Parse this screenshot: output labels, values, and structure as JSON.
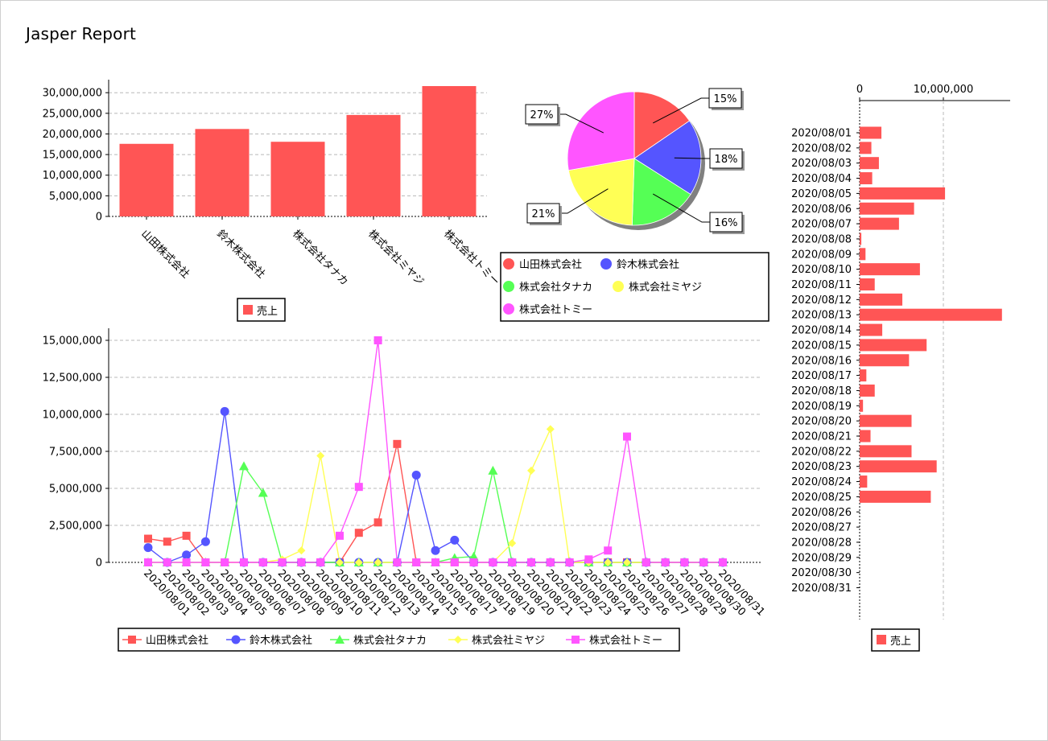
{
  "report_title": "Jasper Report",
  "colors": {
    "red": "#ff5555",
    "blue": "#5555ff",
    "green": "#55ff55",
    "yellow": "#ffff55",
    "magenta": "#ff55ff"
  },
  "chart_data": [
    {
      "id": "bar-chart",
      "type": "bar",
      "categories": [
        "山田株式会社",
        "鈴木株式会社",
        "株式会社タナカ",
        "株式会社ミヤジ",
        "株式会社トミー"
      ],
      "series": [
        {
          "name": "売上",
          "values": [
            17600000,
            21200000,
            18100000,
            24600000,
            31600000
          ]
        }
      ],
      "y_ticks": [
        "0",
        "5,000,000",
        "10,000,000",
        "15,000,000",
        "20,000,000",
        "25,000,000",
        "30,000,000"
      ],
      "ylim": [
        0,
        31600000
      ],
      "legend": "売上"
    },
    {
      "id": "pie-chart",
      "type": "pie",
      "labels": [
        "山田株式会社",
        "鈴木株式会社",
        "株式会社タナカ",
        "株式会社ミヤジ",
        "株式会社トミー"
      ],
      "values": [
        15,
        18,
        16,
        21,
        27
      ],
      "label_text": [
        "15%",
        "18%",
        "16%",
        "21%",
        "27%"
      ]
    },
    {
      "id": "line-chart",
      "type": "line",
      "x": [
        "2020/08/01",
        "2020/08/02",
        "2020/08/03",
        "2020/08/04",
        "2020/08/05",
        "2020/08/06",
        "2020/08/07",
        "2020/08/08",
        "2020/08/09",
        "2020/08/10",
        "2020/08/11",
        "2020/08/12",
        "2020/08/13",
        "2020/08/14",
        "2020/08/15",
        "2020/08/16",
        "2020/08/17",
        "2020/08/18",
        "2020/08/19",
        "2020/08/20",
        "2020/08/21",
        "2020/08/22",
        "2020/08/23",
        "2020/08/24",
        "2020/08/25",
        "2020/08/26",
        "2020/08/27",
        "2020/08/28",
        "2020/08/29",
        "2020/08/30",
        "2020/08/31"
      ],
      "y_ticks": [
        "0",
        "2,500,000",
        "5,000,000",
        "7,500,000",
        "10,000,000",
        "12,500,000",
        "15,000,000"
      ],
      "ylim": [
        0,
        15000000
      ],
      "series": [
        {
          "name": "山田株式会社",
          "marker": "square",
          "values": [
            1600000,
            1400000,
            1800000,
            0,
            0,
            0,
            0,
            0,
            0,
            0,
            0,
            2000000,
            2700000,
            8000000,
            0,
            0,
            0,
            0,
            0,
            0,
            0,
            0,
            0,
            0,
            0,
            0,
            0,
            0,
            0,
            0,
            0
          ]
        },
        {
          "name": "鈴木株式会社",
          "marker": "circle",
          "values": [
            1000000,
            0,
            500000,
            1400000,
            10200000,
            0,
            0,
            0,
            0,
            0,
            0,
            0,
            0,
            0,
            5900000,
            800000,
            1500000,
            0,
            0,
            0,
            0,
            0,
            0,
            0,
            0,
            0,
            0,
            0,
            0,
            0,
            0
          ]
        },
        {
          "name": "株式会社タナカ",
          "marker": "triangle",
          "values": [
            0,
            0,
            0,
            0,
            0,
            6500000,
            4700000,
            0,
            0,
            0,
            0,
            0,
            0,
            0,
            0,
            0,
            300000,
            400000,
            6200000,
            0,
            0,
            0,
            0,
            0,
            0,
            0,
            0,
            0,
            0,
            0,
            0
          ]
        },
        {
          "name": "株式会社ミヤジ",
          "marker": "diamond",
          "values": [
            0,
            0,
            0,
            0,
            0,
            0,
            0,
            200000,
            800000,
            7200000,
            0,
            0,
            0,
            0,
            0,
            0,
            0,
            0,
            0,
            1300000,
            6200000,
            9000000,
            0,
            0,
            0,
            0,
            0,
            0,
            0,
            0,
            0
          ]
        },
        {
          "name": "株式会社トミー",
          "marker": "square",
          "values": [
            0,
            0,
            0,
            0,
            0,
            0,
            0,
            0,
            0,
            0,
            1800000,
            5100000,
            15000000,
            0,
            0,
            0,
            0,
            0,
            0,
            0,
            0,
            0,
            0,
            200000,
            800000,
            8500000,
            0,
            0,
            0,
            0,
            0
          ]
        }
      ]
    },
    {
      "id": "hbar-chart",
      "type": "bar",
      "orientation": "horizontal",
      "categories": [
        "2020/08/01",
        "2020/08/02",
        "2020/08/03",
        "2020/08/04",
        "2020/08/05",
        "2020/08/06",
        "2020/08/07",
        "2020/08/08",
        "2020/08/09",
        "2020/08/10",
        "2020/08/11",
        "2020/08/12",
        "2020/08/13",
        "2020/08/14",
        "2020/08/15",
        "2020/08/16",
        "2020/08/17",
        "2020/08/18",
        "2020/08/19",
        "2020/08/20",
        "2020/08/21",
        "2020/08/22",
        "2020/08/23",
        "2020/08/24",
        "2020/08/25",
        "2020/08/26",
        "2020/08/27",
        "2020/08/28",
        "2020/08/29",
        "2020/08/30",
        "2020/08/31"
      ],
      "series": [
        {
          "name": "売上",
          "values": [
            2600000,
            1400000,
            2300000,
            1500000,
            10200000,
            6500000,
            4700000,
            200000,
            700000,
            7200000,
            1800000,
            5100000,
            17000000,
            2700000,
            8000000,
            5900000,
            800000,
            1800000,
            400000,
            6200000,
            1300000,
            6200000,
            9200000,
            900000,
            8500000,
            0,
            0,
            0,
            0,
            0,
            0
          ]
        }
      ],
      "x_ticks": [
        "0",
        "10,000,000"
      ],
      "xlim": [
        0,
        17500000
      ],
      "legend": "売上"
    }
  ]
}
